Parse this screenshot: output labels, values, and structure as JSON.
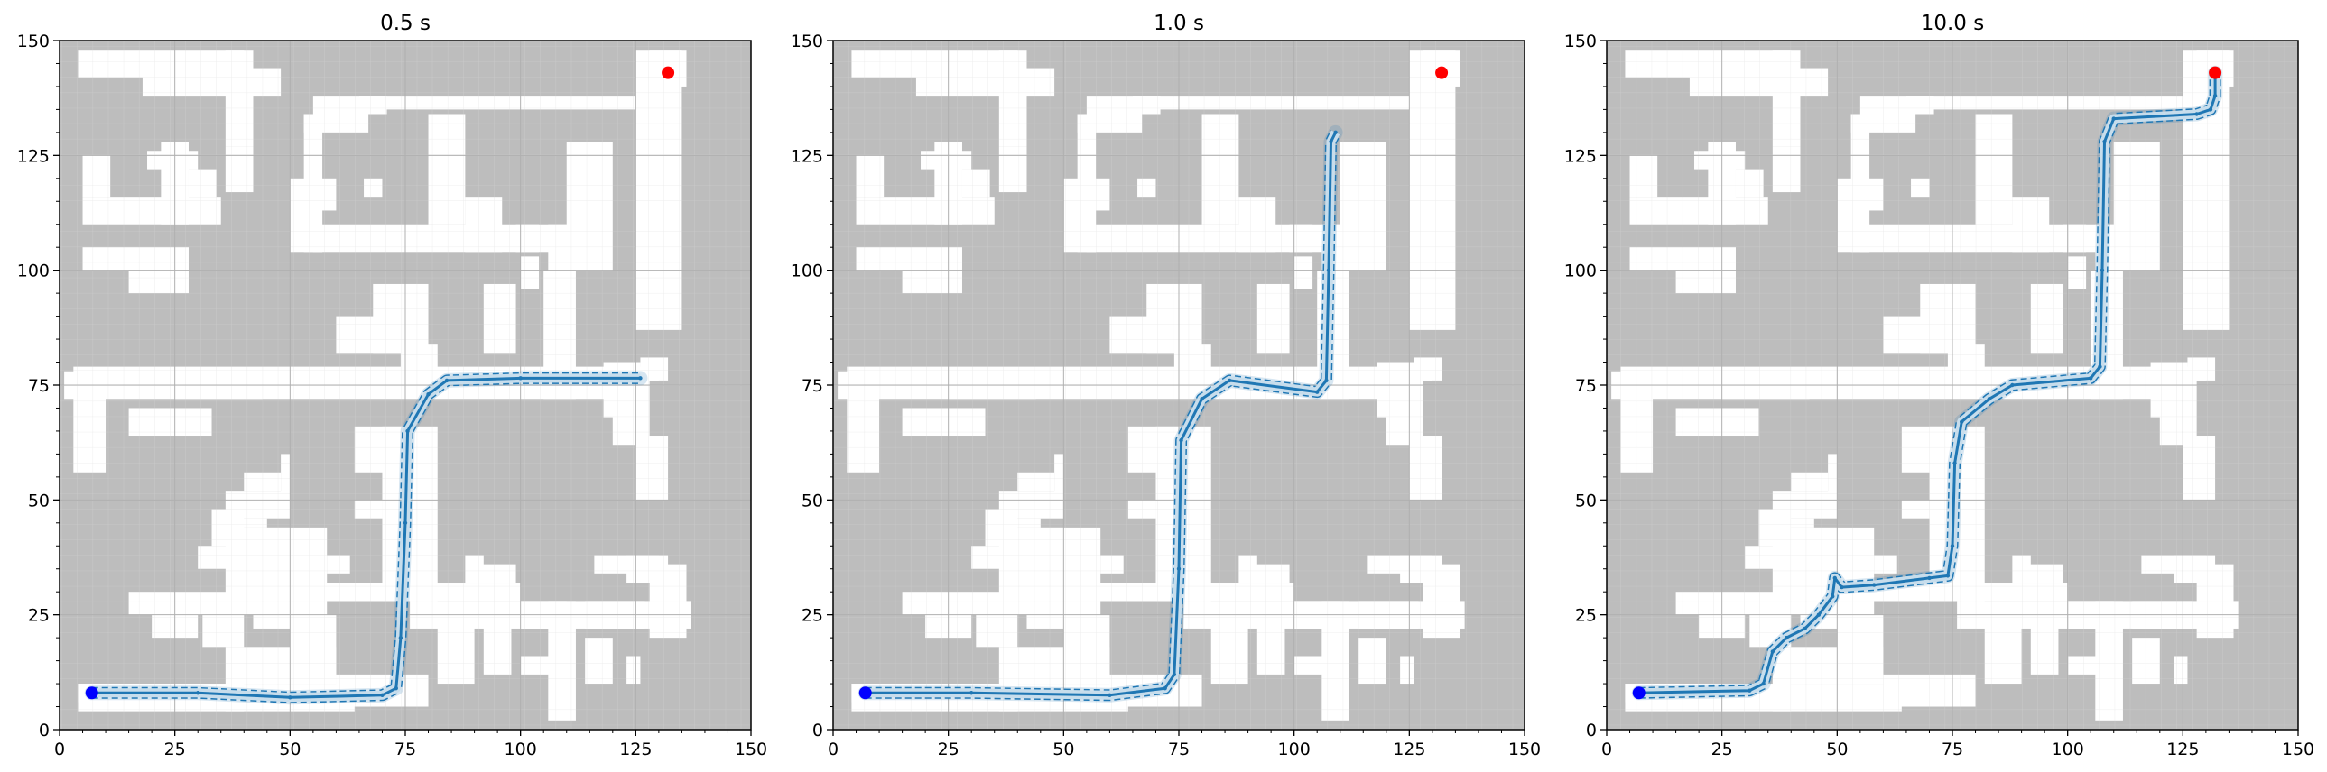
{
  "chart_data": [
    {
      "type": "scatter",
      "title": "0.5 s",
      "xlabel": "",
      "ylabel": "",
      "xlim": [
        0,
        150
      ],
      "ylim": [
        0,
        150
      ],
      "xticks": [
        0,
        25,
        50,
        75,
        100,
        125,
        150
      ],
      "yticks": [
        0,
        25,
        50,
        75,
        100,
        125,
        150
      ],
      "grid": true,
      "start": [
        7,
        8
      ],
      "goal": [
        132,
        143
      ],
      "path": [
        [
          7,
          8
        ],
        [
          30,
          8
        ],
        [
          50,
          7
        ],
        [
          70,
          7.5
        ],
        [
          73,
          9
        ],
        [
          74,
          20
        ],
        [
          75,
          45
        ],
        [
          75.5,
          65
        ],
        [
          80,
          73
        ],
        [
          84,
          76
        ],
        [
          100,
          76.5
        ],
        [
          126,
          76.5
        ]
      ]
    },
    {
      "type": "scatter",
      "title": "1.0 s",
      "xlabel": "",
      "ylabel": "",
      "xlim": [
        0,
        150
      ],
      "ylim": [
        0,
        150
      ],
      "xticks": [
        0,
        25,
        50,
        75,
        100,
        125,
        150
      ],
      "yticks": [
        0,
        25,
        50,
        75,
        100,
        125,
        150
      ],
      "grid": true,
      "start": [
        7,
        8
      ],
      "goal": [
        132,
        143
      ],
      "path": [
        [
          7,
          8
        ],
        [
          30,
          8
        ],
        [
          60,
          7.5
        ],
        [
          72,
          9
        ],
        [
          74,
          12
        ],
        [
          75,
          35
        ],
        [
          75.5,
          63
        ],
        [
          80,
          72
        ],
        [
          86,
          76
        ],
        [
          105,
          73.5
        ],
        [
          107,
          76
        ],
        [
          107.5,
          100
        ],
        [
          108,
          128
        ],
        [
          109,
          130
        ]
      ]
    },
    {
      "type": "scatter",
      "title": "10.0 s",
      "xlabel": "",
      "ylabel": "",
      "xlim": [
        0,
        150
      ],
      "ylim": [
        0,
        150
      ],
      "xticks": [
        0,
        25,
        50,
        75,
        100,
        125,
        150
      ],
      "yticks": [
        0,
        25,
        50,
        75,
        100,
        125,
        150
      ],
      "grid": true,
      "start": [
        7,
        8
      ],
      "goal": [
        132,
        143
      ],
      "path": [
        [
          7,
          8
        ],
        [
          31,
          8.5
        ],
        [
          34,
          10
        ],
        [
          36,
          17
        ],
        [
          39,
          20
        ],
        [
          43,
          22
        ],
        [
          46,
          25
        ],
        [
          49,
          29
        ],
        [
          49.5,
          33
        ],
        [
          51,
          31
        ],
        [
          58,
          31.5
        ],
        [
          70,
          33
        ],
        [
          74,
          33.5
        ],
        [
          75,
          40
        ],
        [
          75.5,
          58
        ],
        [
          77,
          67
        ],
        [
          83,
          72
        ],
        [
          88,
          75
        ],
        [
          105,
          76.5
        ],
        [
          107,
          79
        ],
        [
          107.5,
          100
        ],
        [
          108,
          128
        ],
        [
          110,
          133
        ],
        [
          128,
          134
        ],
        [
          131,
          135
        ],
        [
          132,
          138
        ],
        [
          132,
          143
        ]
      ]
    }
  ]
}
